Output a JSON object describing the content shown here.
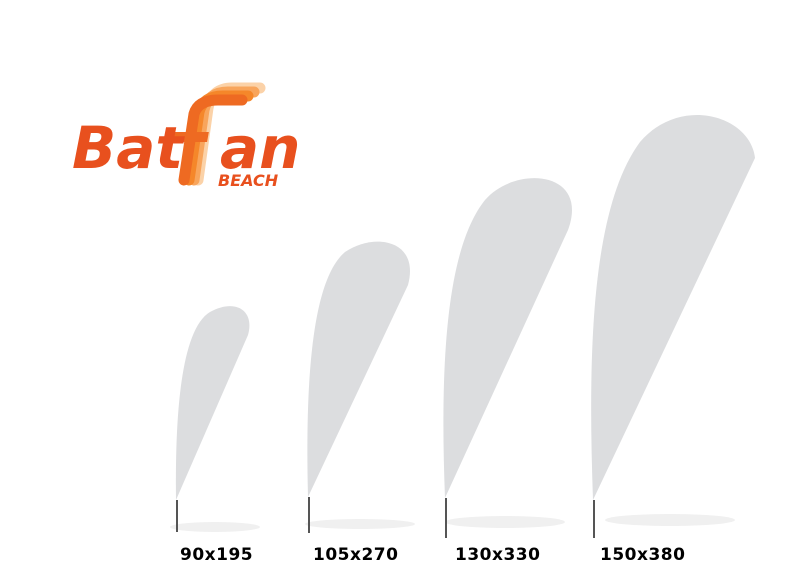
{
  "brand": {
    "name_part1": "Bat",
    "name_part2": "an",
    "tagline": "BEACH",
    "colors": {
      "primary": "#e8501e",
      "secondary": "#f5872a",
      "light": "#fbb97a"
    }
  },
  "flags": [
    {
      "size": "90x195"
    },
    {
      "size": "105x270"
    },
    {
      "size": "130x330"
    },
    {
      "size": "150x380"
    }
  ],
  "colors": {
    "flag_fill": "#dcdddf",
    "pole": "#555555",
    "shadow": "#eeeeee"
  }
}
